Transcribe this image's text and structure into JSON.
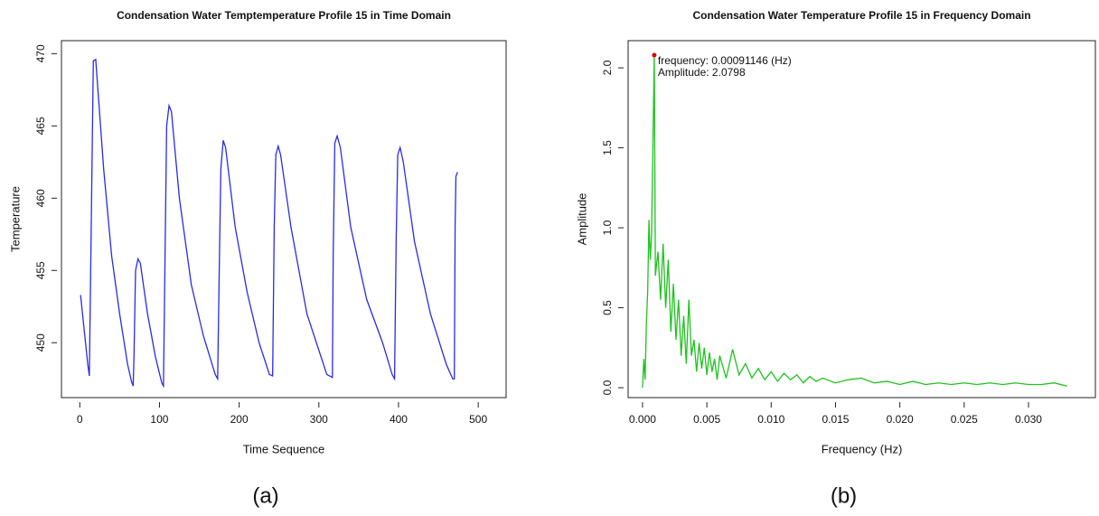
{
  "chart_data": [
    {
      "type": "line",
      "title": "Condensation Water Temptemperature Profile 15 in Time Domain",
      "x_label": "Time Sequence",
      "y_label": "Temperature",
      "caption": "(a)",
      "xlim": [
        -23,
        535
      ],
      "ylim": [
        446.2,
        470.9
      ],
      "xticks": [
        0,
        100,
        200,
        300,
        400,
        500
      ],
      "yticks": [
        450,
        455,
        460,
        465,
        470
      ],
      "series": [
        {
          "color": "#2a2ae8",
          "x": [
            1,
            10,
            12,
            17,
            20,
            30,
            40,
            50,
            60,
            65,
            67,
            68,
            70,
            73,
            76,
            85,
            95,
            103,
            105,
            107,
            109,
            112,
            115,
            125,
            140,
            155,
            170,
            173,
            175,
            177,
            180,
            183,
            195,
            210,
            225,
            238,
            242,
            244,
            246,
            249,
            252,
            265,
            285,
            310,
            317,
            318,
            320,
            323,
            327,
            340,
            360,
            380,
            392,
            395,
            397,
            399,
            402,
            406,
            420,
            440,
            460,
            468,
            470,
            471,
            472,
            474
          ],
          "values": [
            453.3,
            448.5,
            447.7,
            469.5,
            469.6,
            462,
            456,
            452,
            448.5,
            447.3,
            447.0,
            449,
            455,
            455.8,
            455.5,
            452,
            449,
            447.2,
            447.0,
            456,
            465,
            466.4,
            466,
            460,
            454,
            450.5,
            447.8,
            447.5,
            455,
            462,
            464,
            463.5,
            458,
            453.5,
            450,
            447.8,
            447.7,
            458,
            463,
            463.6,
            463,
            458,
            452,
            447.8,
            447.6,
            456,
            463.8,
            464.3,
            463.5,
            458,
            453,
            450,
            447.8,
            447.5,
            457,
            463,
            463.5,
            462.5,
            457,
            452,
            448.5,
            447.5,
            447.5,
            458,
            461.5,
            461.8
          ]
        }
      ]
    },
    {
      "type": "line",
      "title": "Condensation Water Temperature Profile 15 in Frequency Domain",
      "x_label": "Frequency (Hz)",
      "y_label": "Amplitude",
      "caption": "(b)",
      "xlim": [
        -0.00112,
        0.0352
      ],
      "ylim": [
        -0.062,
        2.17
      ],
      "xticks": [
        {
          "value": 0,
          "label": "0.000"
        },
        {
          "value": 0.005,
          "label": "0.005"
        },
        {
          "value": 0.01,
          "label": "0.010"
        },
        {
          "value": 0.015,
          "label": "0.015"
        },
        {
          "value": 0.02,
          "label": "0.020"
        },
        {
          "value": 0.025,
          "label": "0.025"
        },
        {
          "value": 0.03,
          "label": "0.030"
        }
      ],
      "yticks": [
        {
          "value": 0,
          "label": "0.0"
        },
        {
          "value": 0.5,
          "label": "0.5"
        },
        {
          "value": 1,
          "label": "1.0"
        },
        {
          "value": 1.5,
          "label": "1.5"
        },
        {
          "value": 2,
          "label": "2.0"
        }
      ],
      "annotation": {
        "x": 0.00091146,
        "y": 2.0798,
        "color": "#e00000",
        "lines": [
          "frequency: 0.00091146 (Hz)",
          "Amplitude: 2.0798"
        ]
      },
      "series": [
        {
          "color": "#1fc21f",
          "x": [
            0,
            0.0001,
            0.0002,
            0.0003,
            0.0004,
            0.0005,
            0.0006,
            0.0007,
            0.0008,
            0.00091146,
            0.001,
            0.0012,
            0.0014,
            0.0016,
            0.0018,
            0.002,
            0.0022,
            0.0024,
            0.0026,
            0.0028,
            0.003,
            0.0032,
            0.0034,
            0.0036,
            0.0038,
            0.004,
            0.0042,
            0.0044,
            0.0046,
            0.0048,
            0.005,
            0.0052,
            0.0054,
            0.0056,
            0.0058,
            0.006,
            0.0065,
            0.007,
            0.0075,
            0.008,
            0.0085,
            0.009,
            0.0095,
            0.01,
            0.0105,
            0.011,
            0.0115,
            0.012,
            0.0125,
            0.013,
            0.0135,
            0.014,
            0.015,
            0.016,
            0.017,
            0.018,
            0.019,
            0.02,
            0.021,
            0.022,
            0.023,
            0.024,
            0.025,
            0.026,
            0.027,
            0.028,
            0.029,
            0.03,
            0.031,
            0.032,
            0.033
          ],
          "values": [
            0.0,
            0.18,
            0.05,
            0.4,
            0.6,
            1.05,
            0.8,
            0.95,
            1.47,
            2.0798,
            0.7,
            0.85,
            0.55,
            0.9,
            0.5,
            0.8,
            0.35,
            0.65,
            0.3,
            0.55,
            0.2,
            0.45,
            0.15,
            0.55,
            0.2,
            0.3,
            0.1,
            0.28,
            0.12,
            0.25,
            0.08,
            0.22,
            0.1,
            0.18,
            0.05,
            0.2,
            0.06,
            0.24,
            0.08,
            0.15,
            0.06,
            0.12,
            0.05,
            0.1,
            0.04,
            0.09,
            0.05,
            0.08,
            0.03,
            0.07,
            0.04,
            0.06,
            0.03,
            0.05,
            0.06,
            0.03,
            0.04,
            0.02,
            0.04,
            0.02,
            0.03,
            0.02,
            0.03,
            0.02,
            0.03,
            0.02,
            0.03,
            0.02,
            0.02,
            0.03,
            0.01
          ]
        }
      ]
    }
  ]
}
